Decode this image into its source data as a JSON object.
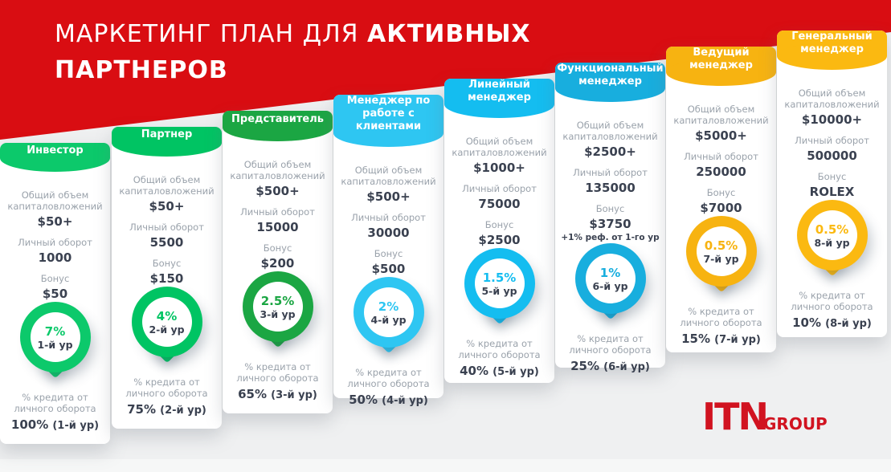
{
  "header": {
    "title_regular": "МАРКЕТИНГ ПЛАН ДЛЯ ",
    "title_bold": "АКТИВНЫХ",
    "title_line2": "ПАРТНЕРОВ",
    "banner_color": "#d90d12"
  },
  "field_labels": {
    "investment": "Общий объем капиталовложений",
    "turnover": "Личный оборот",
    "bonus": "Бонус",
    "credit": "% кредита от личного оборота"
  },
  "cards": [
    {
      "title": "Инвестор",
      "color": "#0cc96b",
      "investment": "$50+",
      "turnover": "1000",
      "bonus": "$50",
      "badge_percent": "7%",
      "badge_level": "1-й ур",
      "credit_value": "100%",
      "credit_level": "(1-й ур)"
    },
    {
      "title": "Партнер",
      "color": "#00c463",
      "investment": "$50+",
      "turnover": "5500",
      "bonus": "$150",
      "badge_percent": "4%",
      "badge_level": "2-й ур",
      "credit_value": "75%",
      "credit_level": "(2-й ур)"
    },
    {
      "title": "Представитель",
      "color": "#1ba643",
      "investment": "$500+",
      "turnover": "15000",
      "bonus": "$200",
      "badge_percent": "2.5%",
      "badge_level": "3-й ур",
      "credit_value": "65%",
      "credit_level": "(3-й ур)"
    },
    {
      "title": "Менеджер по работе с клиентами",
      "color": "#2ec6f2",
      "investment": "$500+",
      "turnover": "30000",
      "bonus": "$500",
      "badge_percent": "2%",
      "badge_level": "4-й ур",
      "credit_value": "50%",
      "credit_level": "(4-й ур)"
    },
    {
      "title": "Линейный менеджер",
      "color": "#14bdf0",
      "investment": "$1000+",
      "turnover": "75000",
      "bonus": "$2500",
      "badge_percent": "1.5%",
      "badge_level": "5-й ур",
      "credit_value": "40%",
      "credit_level": "(5-й ур)"
    },
    {
      "title": "Функциональный менеджер",
      "color": "#18aede",
      "investment": "$2500+",
      "turnover": "135000",
      "bonus": "$3750",
      "bonus_note": "+1% реф. от 1-го ур",
      "badge_percent": "1%",
      "badge_level": "6-й ур",
      "credit_value": "25%",
      "credit_level": "(6-й ур)"
    },
    {
      "title": "Ведущий менеджер",
      "color": "#f7b311",
      "investment": "$5000+",
      "turnover": "250000",
      "bonus": "$7000",
      "badge_percent": "0.5%",
      "badge_level": "7-й ур",
      "credit_value": "15%",
      "credit_level": "(7-й ур)"
    },
    {
      "title": "Генеральный менеджер",
      "color": "#fbb911",
      "investment": "$10000+",
      "turnover": "500000",
      "bonus": "ROLEX",
      "badge_percent": "0.5%",
      "badge_level": "8-й ур",
      "credit_value": "10%",
      "credit_level": "(8-й ур)"
    }
  ],
  "logo": {
    "name": "ITN",
    "suffix": "GROUP",
    "color": "#d11320"
  }
}
